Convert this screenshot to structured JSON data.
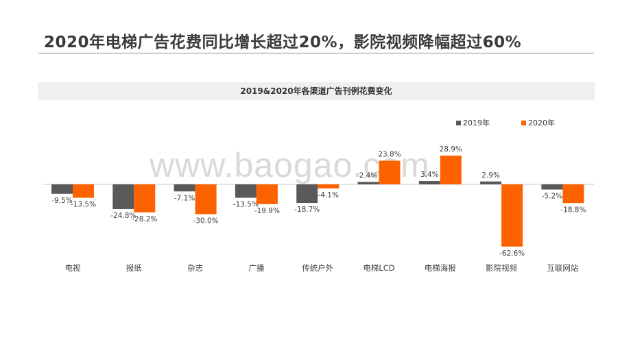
{
  "headline": "2020年电梯广告花费同比增长超过20%，影院视频降幅超过60%",
  "watermark": "www.baogao.com",
  "colors": {
    "s2019": "#595959",
    "s2020": "#fd6200",
    "axis": "#c8c8c8",
    "label": "#404040"
  },
  "chart_data": {
    "type": "bar",
    "title": "2019&2020年各渠道广告刊例花费变化",
    "categories": [
      "电视",
      "报纸",
      "杂志",
      "广播",
      "传统户外",
      "电梯LCD",
      "电梯海报",
      "影院视频",
      "互联网站"
    ],
    "series": [
      {
        "name": "2019年",
        "values": [
          -9.5,
          -24.8,
          -7.1,
          -13.5,
          -18.7,
          2.4,
          3.4,
          2.9,
          -5.2
        ],
        "labels": [
          "-9.5%",
          "-24.8%",
          "-7.1%",
          "-13.5%",
          "-18.7%",
          "2.4%",
          "3.4%",
          "2.9%",
          "-5.2%"
        ]
      },
      {
        "name": "2020年",
        "values": [
          -13.5,
          -28.2,
          -30.0,
          -19.9,
          -4.1,
          23.8,
          28.9,
          -62.6,
          -18.8
        ],
        "labels": [
          "-13.5%",
          "-28.2%",
          "-30.0%",
          "-19.9%",
          "-4.1%",
          "23.8%",
          "28.9%",
          "-62.6%",
          "-18.8%"
        ]
      }
    ],
    "legend_position": "top-right",
    "grid": false
  }
}
